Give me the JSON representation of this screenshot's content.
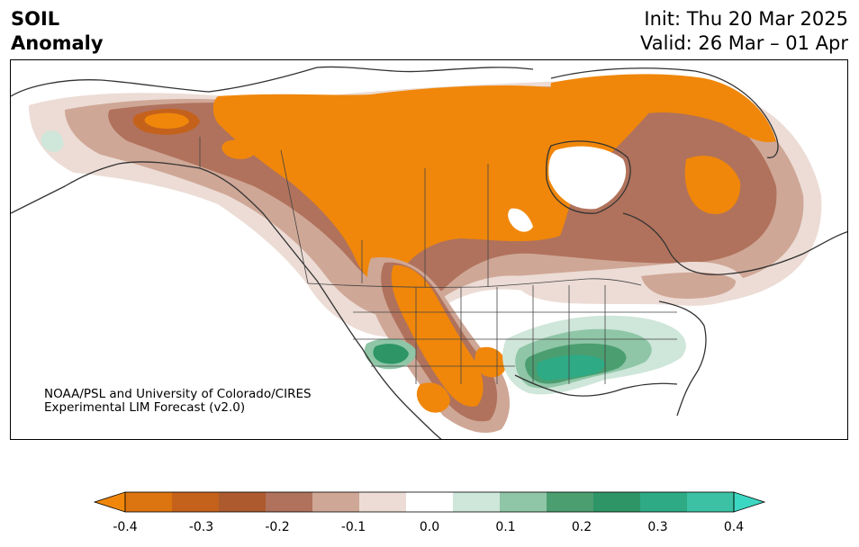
{
  "header": {
    "title_line1": "SOIL",
    "title_line2": "Anomaly",
    "init": "Init: Thu 20 Mar 2025",
    "valid": "Valid: 26 Mar – 01 Apr"
  },
  "credit": {
    "line1": "NOAA/PSL and University of Colorado/CIRES",
    "line2": "Experimental LIM Forecast (v2.0)"
  },
  "colorbar": {
    "levels": [
      -0.4,
      -0.35,
      -0.3,
      -0.25,
      -0.2,
      -0.15,
      -0.1,
      -0.05,
      0.05,
      0.1,
      0.15,
      0.2,
      0.25,
      0.3,
      0.35,
      0.4
    ],
    "colors": [
      "#f0870a",
      "#dc740f",
      "#c4621c",
      "#ad5a2e",
      "#b0725c",
      "#cfa796",
      "#ecdcd5",
      "#ffffff",
      "#cfe6da",
      "#8fc6a7",
      "#4b9e70",
      "#2d9566",
      "#2eaa85",
      "#3cc1a4",
      "#3cd7c2"
    ],
    "tick_labels": [
      "-0.4",
      "-0.3",
      "-0.2",
      "-0.1",
      "0.0",
      "0.1",
      "0.2",
      "0.3",
      "0.4"
    ],
    "extend": "both"
  },
  "map": {
    "projection": "Lambert conformal, North America",
    "features": [
      "coastlines",
      "country borders",
      "state/province borders"
    ]
  }
}
